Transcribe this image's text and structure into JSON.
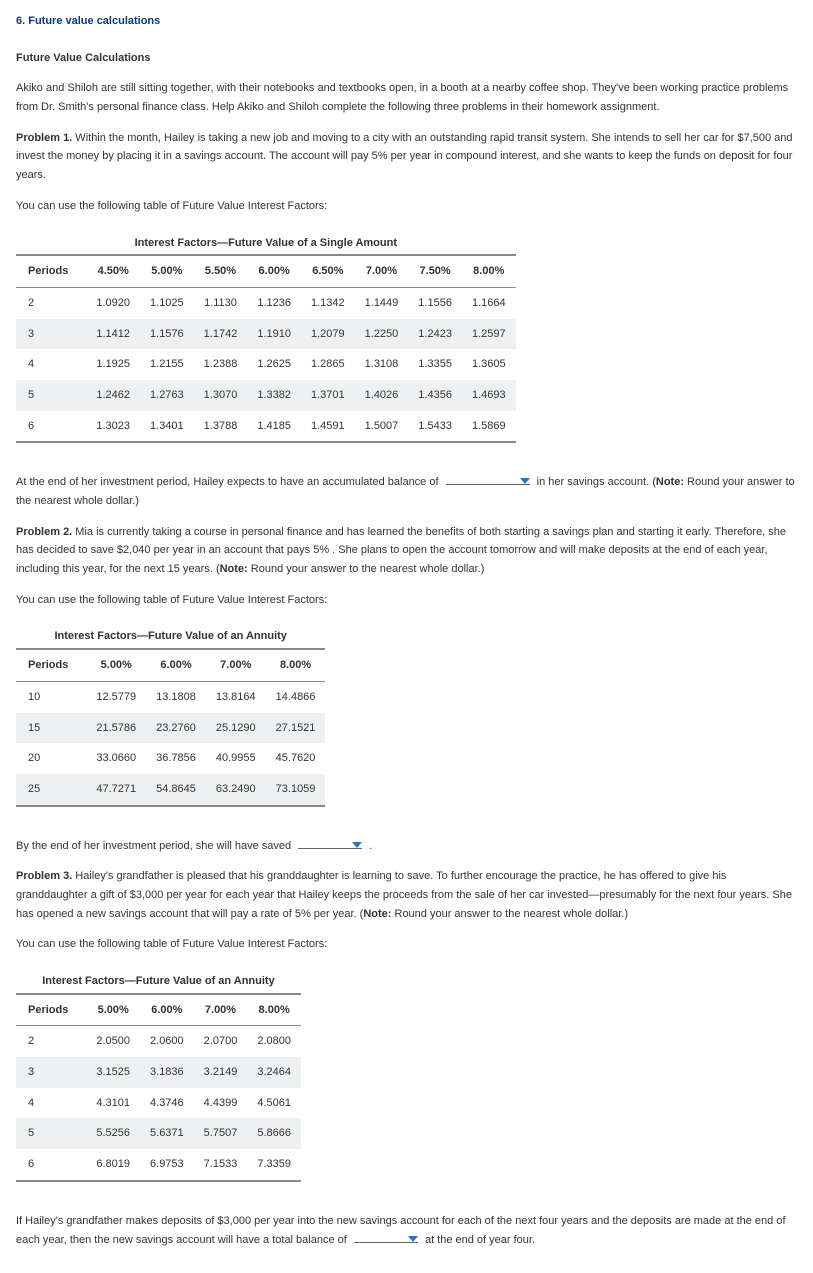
{
  "section_title": "6. Future value calculations",
  "subhead": "Future Value Calculations",
  "intro": "Akiko and Shiloh are still sitting together, with their notebooks and textbooks open, in a booth at a nearby coffee shop. They've been working practice problems from Dr. Smith's personal finance class. Help Akiko and Shiloh complete the following three problems in their homework assignment.",
  "p1": {
    "label": "Problem 1.",
    "text": " Within the month, Hailey is taking a new job and moving to a city with an outstanding rapid transit system. She intends to sell her car for $7,500 and invest the money by placing it in a savings account. The account will pay 5% per year in compound interest, and she wants to keep the funds on deposit for four years.",
    "canuse": "You can use the following table of Future Value Interest Factors:",
    "table_title": "Interest Factors—Future Value of a Single Amount",
    "cols": [
      "Periods",
      "4.50%",
      "5.00%",
      "5.50%",
      "6.00%",
      "6.50%",
      "7.00%",
      "7.50%",
      "8.00%"
    ],
    "rows": [
      [
        "2",
        "1.0920",
        "1.1025",
        "1.1130",
        "1.1236",
        "1.1342",
        "1.1449",
        "1.1556",
        "1.1664"
      ],
      [
        "3",
        "1.1412",
        "1.1576",
        "1.1742",
        "1.1910",
        "1.2079",
        "1.2250",
        "1.2423",
        "1.2597"
      ],
      [
        "4",
        "1.1925",
        "1.2155",
        "1.2388",
        "1.2625",
        "1.2865",
        "1.3108",
        "1.3355",
        "1.3605"
      ],
      [
        "5",
        "1.2462",
        "1.2763",
        "1.3070",
        "1.3382",
        "1.3701",
        "1.4026",
        "1.4356",
        "1.4693"
      ],
      [
        "6",
        "1.3023",
        "1.3401",
        "1.3788",
        "1.4185",
        "1.4591",
        "1.5007",
        "1.5433",
        "1.5869"
      ]
    ],
    "q_before": "At the end of her investment period, Hailey expects to have an accumulated balance of ",
    "q_after": " in her savings account. (",
    "note_label": "Note:",
    "note_text": " Round your answer to the nearest whole dollar.)"
  },
  "p2": {
    "label": "Problem 2.",
    "text": " Mia is currently taking a course in personal finance and has learned the benefits of both starting a savings plan and starting it early. Therefore, she has decided to save $2,040 per year in an account that pays 5% . She plans to open the account tomorrow and will make deposits at the end of each year, including this year, for the next 15 years. (",
    "note_label": "Note:",
    "note_text": " Round your answer to the nearest whole dollar.)",
    "canuse": "You can use the following table of Future Value Interest Factors:",
    "table_title": "Interest Factors—Future Value of an Annuity",
    "cols": [
      "Periods",
      "5.00%",
      "6.00%",
      "7.00%",
      "8.00%"
    ],
    "rows": [
      [
        "10",
        "12.5779",
        "13.1808",
        "13.8164",
        "14.4866"
      ],
      [
        "15",
        "21.5786",
        "23.2760",
        "25.1290",
        "27.1521"
      ],
      [
        "20",
        "33.0660",
        "36.7856",
        "40.9955",
        "45.7620"
      ],
      [
        "25",
        "47.7271",
        "54.8645",
        "63.2490",
        "73.1059"
      ]
    ],
    "q_before": "By the end of her investment period, she will have saved ",
    "q_after": " ."
  },
  "p3": {
    "label": "Problem 3.",
    "text": " Hailey's grandfather is pleased that his granddaughter is learning to save. To further encourage the practice, he has offered to give his granddaughter a gift of $3,000 per year for each year that Hailey keeps the proceeds from the sale of her car invested—presumably for the next four years. She has opened a new savings account that will pay a rate of 5% per year. (",
    "note_label": "Note:",
    "note_text": " Round your answer to the nearest whole dollar.)",
    "canuse": "You can use the following table of Future Value Interest Factors:",
    "table_title": "Interest Factors—Future Value of an Annuity",
    "cols": [
      "Periods",
      "5.00%",
      "6.00%",
      "7.00%",
      "8.00%"
    ],
    "rows": [
      [
        "2",
        "2.0500",
        "2.0600",
        "2.0700",
        "2.0800"
      ],
      [
        "3",
        "3.1525",
        "3.1836",
        "3.2149",
        "3.2464"
      ],
      [
        "4",
        "4.3101",
        "4.3746",
        "4.4399",
        "4.5061"
      ],
      [
        "5",
        "5.5256",
        "5.6371",
        "5.7507",
        "5.8666"
      ],
      [
        "6",
        "6.8019",
        "6.9753",
        "7.1533",
        "7.3359"
      ]
    ],
    "q_before": "If Hailey's grandfather makes deposits of $3,000 per year into the new savings account for each of the next four years and the deposits are made at the end of each year, then the new savings account will have a total balance of ",
    "q_after": " at the end of year four."
  }
}
